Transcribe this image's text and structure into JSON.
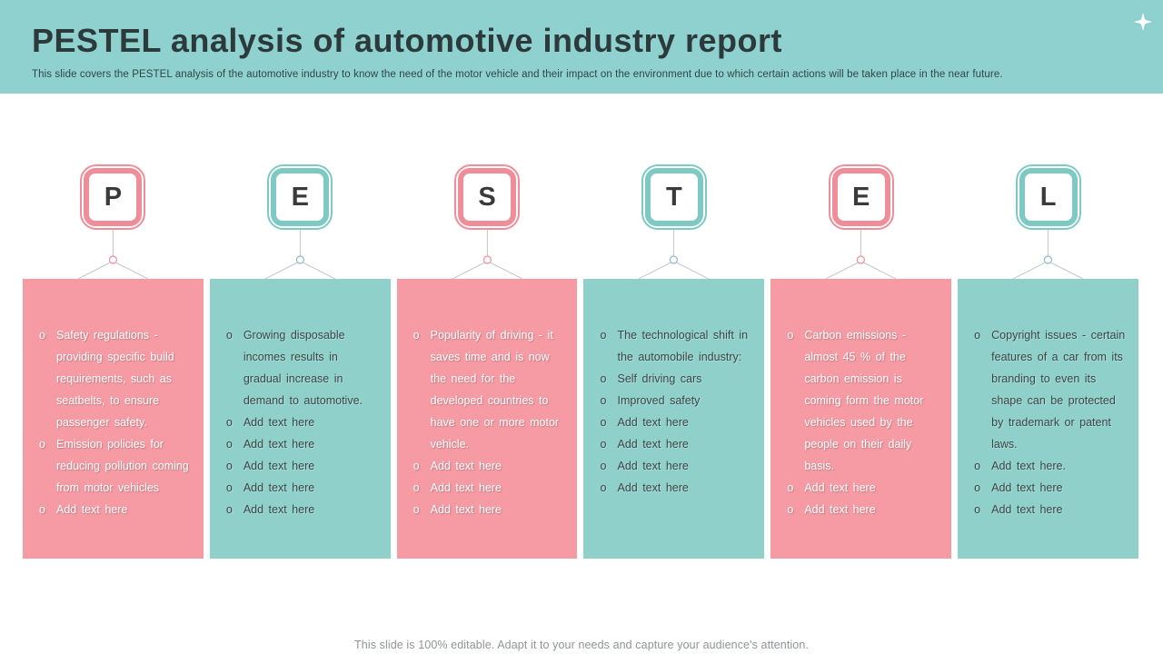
{
  "header": {
    "title": "PESTEL analysis of automotive industry report",
    "subtitle": "This slide covers the PESTEL analysis of the automotive industry to know  the need of the motor vehicle and their impact on the environment due to which certain actions will be taken place in the near future."
  },
  "list_bullet": "o",
  "columns": [
    {
      "letter": "P",
      "accent": "pink",
      "items": [
        "Safety regulations - providing  specific build requirements,  such as seatbelts, to ensure passenger safety.",
        "Emission policies  for reducing pollution coming from motor vehicles",
        "Add text here"
      ]
    },
    {
      "letter": "E",
      "accent": "teal",
      "items": [
        "Growing  disposable incomes results in gradual  increase in demand  to automotive.",
        "Add text here",
        "Add text here",
        "Add text here",
        "Add text here",
        "Add text here"
      ]
    },
    {
      "letter": "S",
      "accent": "pink",
      "items": [
        "Popularity of driving  -  it saves time and  is now the need  for the developed  countries to have  one  or more  motor vehicle.",
        "Add text here",
        "Add text here",
        "Add text here"
      ]
    },
    {
      "letter": "T",
      "accent": "teal",
      "items": [
        "The technological  shift in  the  automobile industry:",
        "Self driving  cars",
        "Improved  safety",
        "Add text here",
        "Add text here",
        "Add text here",
        "Add text here"
      ]
    },
    {
      "letter": "E",
      "accent": "pink",
      "items": [
        "Carbon  emissions - almost 45 % of the carbon  emission is coming form  the motor vehicles  used by the people  on their daily basis.",
        "Add text here",
        "Add text here"
      ]
    },
    {
      "letter": "L",
      "accent": "teal",
      "items": [
        "Copyright issues - certain features  of a car from its branding  to even  its shape  can be protected  by trademark or patent  laws.",
        "Add text here.",
        "Add text here",
        "Add text here"
      ]
    }
  ],
  "footer": "This slide is 100% editable. Adapt it to your needs and capture your audience's attention.",
  "colors": {
    "header_bg": "#8ed1ce",
    "pink_accent": "#ef8e99",
    "pink_box": "#f69ba3",
    "teal_accent": "#7ec9c3",
    "teal_box": "#90d0ca",
    "title_text": "#2d3a3c",
    "connector_line": "#c3c8cc"
  }
}
